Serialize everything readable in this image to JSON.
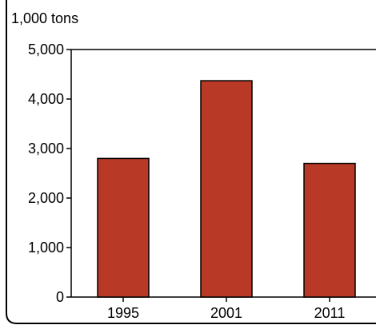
{
  "chart_data": {
    "type": "bar",
    "unit_label": "1,000 tons",
    "categories": [
      "1995",
      "2001",
      "2011"
    ],
    "values": [
      2800,
      4370,
      2700
    ],
    "ylim": [
      0,
      5000
    ],
    "y_ticks": [
      0,
      1000,
      2000,
      3000,
      4000,
      5000
    ],
    "y_tick_labels": [
      "0",
      "1,000",
      "2,000",
      "3,000",
      "4,000",
      "5,000"
    ],
    "grid": false,
    "bar_color": "#b83a26",
    "bar_outline_color": "#000000"
  }
}
